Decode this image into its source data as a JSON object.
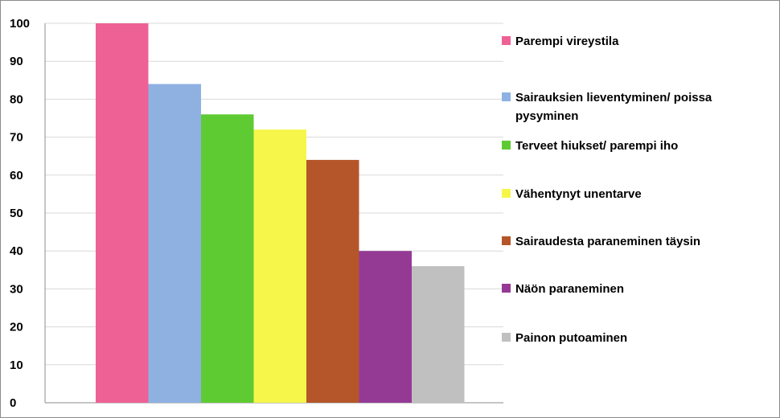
{
  "chart_data": {
    "type": "bar",
    "title": "",
    "xlabel": "",
    "ylabel": "",
    "ylim": [
      0,
      100
    ],
    "yticks": [
      "0",
      "10",
      "20",
      "30",
      "40",
      "50",
      "60",
      "70",
      "80",
      "90",
      "100"
    ],
    "grid": "horizontal",
    "legend_position": "right",
    "series": [
      {
        "name": "Parempi vireystila",
        "value": 100,
        "color": "#EE6195"
      },
      {
        "name": "Sairauksien lieventyminen/ poissa pysyminen",
        "value": 84,
        "color": "#8EB1E2"
      },
      {
        "name": "Terveet hiukset/ parempi iho",
        "value": 76,
        "color": "#5FCB33"
      },
      {
        "name": "Vähentynyt unentarve",
        "value": 72,
        "color": "#F6F64A"
      },
      {
        "name": "Sairaudesta paraneminen täysin",
        "value": 64,
        "color": "#B5562A"
      },
      {
        "name": "Näön paraneminen",
        "value": 40,
        "color": "#943A95"
      },
      {
        "name": "Painon putoaminen",
        "value": 36,
        "color": "#C0C0C0"
      }
    ]
  }
}
